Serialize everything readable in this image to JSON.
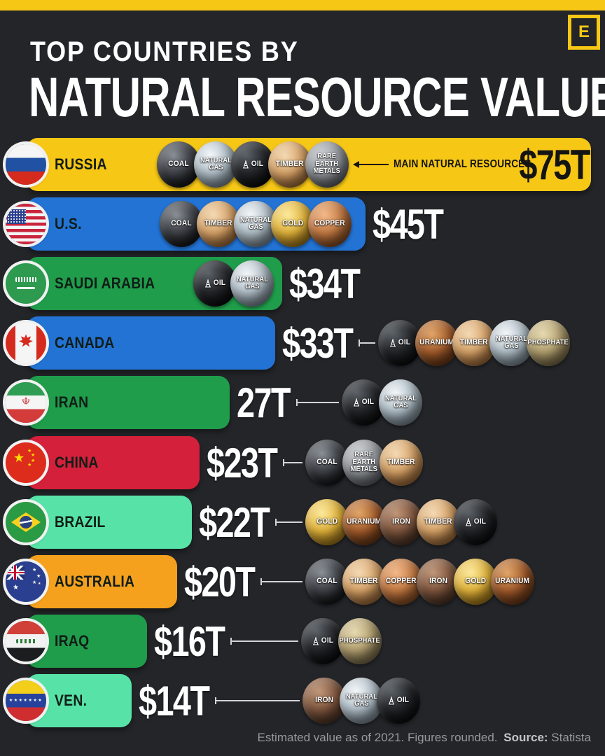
{
  "page": {
    "brand_letter": "E",
    "title_line1": "TOP COUNTRIES BY",
    "title_line2": "NATURAL RESOURCE VALUE",
    "footer": {
      "text": "Estimated value as of 2021. Figures rounded.",
      "source_label": "Source:",
      "source": "Statista"
    },
    "colors": {
      "background": "#232529",
      "accent_yellow": "#f7c715",
      "bar_blue": "#2273d4",
      "bar_green": "#1f9d4b",
      "bar_red": "#d5203b",
      "bar_mint": "#57e3a7",
      "bar_orange": "#f5a11d"
    }
  },
  "chart_data": {
    "type": "bar",
    "orientation": "horizontal",
    "unit": "trillions of USD",
    "title": "TOP COUNTRIES BY NATURAL RESOURCE VALUE",
    "annotation": "MAIN NATURAL RESOURCES",
    "categories": [
      "RUSSIA",
      "U.S.",
      "SAUDI ARABIA",
      "CANADA",
      "IRAN",
      "CHINA",
      "BRAZIL",
      "AUSTRALIA",
      "IRAQ",
      "VEN."
    ],
    "values": [
      75,
      45,
      34,
      33,
      27,
      23,
      22,
      20,
      16,
      14
    ],
    "value_labels": [
      "$75T",
      "$45T",
      "$34T",
      "$33T",
      "27T",
      "$23T",
      "$22T",
      "$20T",
      "$16T",
      "$14T"
    ],
    "xlim": [
      0,
      75
    ],
    "resource_labels": {
      "coal": "COAL",
      "natural_gas": "NATURAL\nGAS",
      "oil": "OIL",
      "timber": "TIMBER",
      "rare_earth_metals": "RARE\nEARTH\nMETALS",
      "gold": "GOLD",
      "copper": "COPPER",
      "uranium": "URANIUM",
      "iron": "IRON",
      "phosphate": "PHOSPHATE"
    },
    "rows": [
      {
        "country": "RUSSIA",
        "flag": "russia",
        "value": 75,
        "value_label": "$75T",
        "color": "#f7c715",
        "value_inside": true,
        "has_annotation": true,
        "connector": false,
        "resources": [
          "coal",
          "natural_gas",
          "oil",
          "timber",
          "rare_earth_metals"
        ]
      },
      {
        "country": "U.S.",
        "flag": "us",
        "value": 45,
        "value_label": "$45T",
        "color": "#2273d4",
        "value_inside": false,
        "has_annotation": false,
        "connector": false,
        "resources": [
          "coal",
          "timber",
          "natural_gas",
          "gold",
          "copper"
        ]
      },
      {
        "country": "SAUDI ARABIA",
        "flag": "saudi_arabia",
        "value": 34,
        "value_label": "$34T",
        "color": "#1f9d4b",
        "value_inside": false,
        "has_annotation": false,
        "connector": false,
        "resources": [
          "oil",
          "natural_gas"
        ]
      },
      {
        "country": "CANADA",
        "flag": "canada",
        "value": 33,
        "value_label": "$33T",
        "color": "#2273d4",
        "value_inside": false,
        "has_annotation": false,
        "connector": true,
        "resources": [
          "oil",
          "uranium",
          "timber",
          "natural_gas",
          "phosphate"
        ]
      },
      {
        "country": "IRAN",
        "flag": "iran",
        "value": 27,
        "value_label": "27T",
        "color": "#1f9d4b",
        "value_inside": false,
        "has_annotation": false,
        "connector": true,
        "resources": [
          "oil",
          "natural_gas"
        ]
      },
      {
        "country": "CHINA",
        "flag": "china",
        "value": 23,
        "value_label": "$23T",
        "color": "#d5203b",
        "value_inside": false,
        "has_annotation": false,
        "connector": true,
        "resources": [
          "coal",
          "rare_earth_metals",
          "timber"
        ]
      },
      {
        "country": "BRAZIL",
        "flag": "brazil",
        "value": 22,
        "value_label": "$22T",
        "color": "#57e3a7",
        "value_inside": false,
        "has_annotation": false,
        "connector": true,
        "resources": [
          "gold",
          "uranium",
          "iron",
          "timber",
          "oil"
        ]
      },
      {
        "country": "AUSTRALIA",
        "flag": "australia",
        "value": 20,
        "value_label": "$20T",
        "color": "#f5a11d",
        "value_inside": false,
        "has_annotation": false,
        "connector": true,
        "resources": [
          "coal",
          "timber",
          "copper",
          "iron",
          "gold",
          "uranium"
        ]
      },
      {
        "country": "IRAQ",
        "flag": "iraq",
        "value": 16,
        "value_label": "$16T",
        "color": "#1f9d4b",
        "value_inside": false,
        "has_annotation": false,
        "connector": true,
        "resources": [
          "oil",
          "phosphate"
        ]
      },
      {
        "country": "VEN.",
        "flag": "ven",
        "value": 14,
        "value_label": "$14T",
        "color": "#57e3a7",
        "value_inside": false,
        "has_annotation": false,
        "connector": true,
        "resources": [
          "iron",
          "natural_gas",
          "oil"
        ]
      }
    ],
    "footer": "Estimated value as of 2021. Figures rounded. Source: Statista"
  }
}
